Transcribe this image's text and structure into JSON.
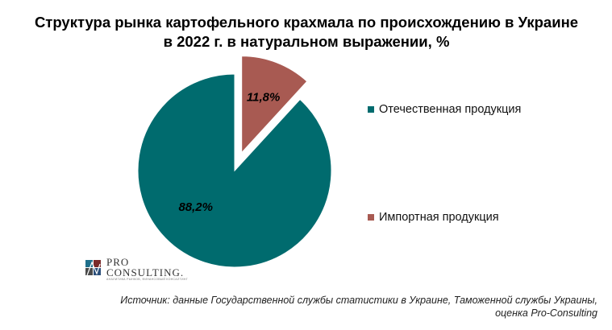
{
  "title": {
    "line1": "Структура рынка картофельного крахмала по происхождению в Украине",
    "line2": "в 2022 г. в натуральном выражении, %"
  },
  "chart_data": {
    "type": "pie",
    "labels": [
      "Отечественная продукция",
      "Импортная продукция"
    ],
    "values": [
      88.2,
      11.8
    ],
    "value_labels": [
      "88,2%",
      "11,8%"
    ],
    "colors": [
      "#006B6E",
      "#A85A52"
    ],
    "exploded": [
      false,
      true
    ],
    "legend_position": "right"
  },
  "logo": {
    "line1": "PRO",
    "line2": "CONSULTING.",
    "tagline": "АНАЛИТИКА РЫНКОВ, ФИНАНСОВЫЙ КОНСАЛТИНГ"
  },
  "source": {
    "line1": "Источник: данные Государственной службы статистики в Украине, Таможенной службы Украины,",
    "line2": "оценка Pro-Consulting"
  }
}
